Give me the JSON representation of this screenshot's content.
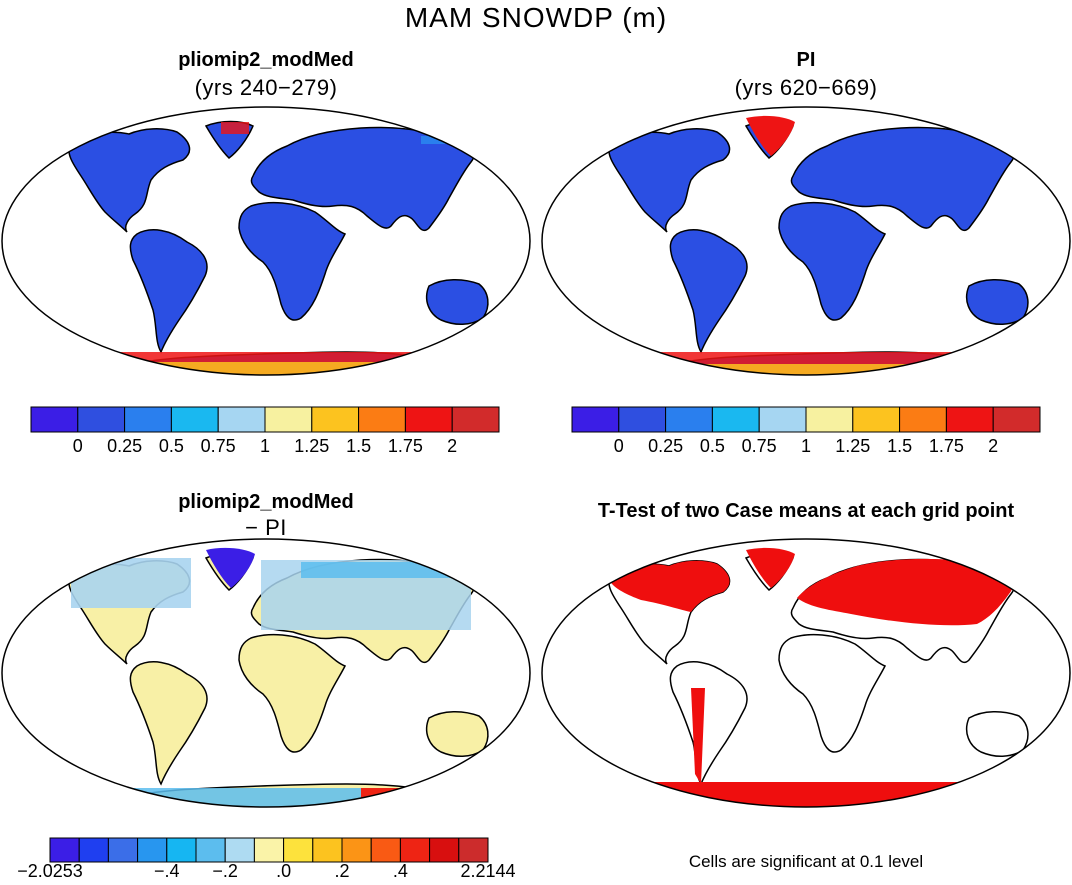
{
  "figure": {
    "title": "MAM SNOWDP (m)",
    "panels": [
      {
        "title": "pliomip2_modMed",
        "subtitle": "(yrs 240−279)",
        "type": "absolute"
      },
      {
        "title": "PI",
        "subtitle": "(yrs 620−669)",
        "type": "absolute"
      },
      {
        "title": "pliomip2_modMed",
        "subtitle": "− PI",
        "type": "difference"
      },
      {
        "title": "T-Test of two Case means at each grid point",
        "subtitle": "",
        "type": "significance"
      }
    ],
    "colorbar_abs": {
      "colors": [
        "#3b1ee6",
        "#2f4fe0",
        "#2a7fee",
        "#1ab8f0",
        "#a6d6f2",
        "#f7f1a0",
        "#fcc31f",
        "#fb7c14",
        "#ee1414",
        "#d22b2b"
      ],
      "tick_labels": [
        "0",
        "0.25",
        "0.5",
        "0.75",
        "1",
        "1.25",
        "1.5",
        "1.75",
        "2"
      ]
    },
    "colorbar_diff": {
      "colors": [
        "#3b1ee6",
        "#1f3ff0",
        "#3b6ee8",
        "#2896ef",
        "#16b6f2",
        "#5cbdee",
        "#aedbf2",
        "#faf3a8",
        "#fde23c",
        "#fcc31f",
        "#fb9416",
        "#f95a14",
        "#ee2414",
        "#d80f0f",
        "#cc2c2c"
      ],
      "tick_labels": [
        "−2.0253",
        "−.4",
        "−.2",
        ".0",
        ".2",
        ".4",
        "2.2144"
      ]
    },
    "significance_note": "Cells are significant at 0.1 level",
    "colors": {
      "land_abs": "#2b4fe3",
      "ice_abs": "#e8200f",
      "land_diff": "#f8f0a6",
      "high_diff": "#a8d4ef",
      "significant": "#ef0e0e"
    }
  }
}
